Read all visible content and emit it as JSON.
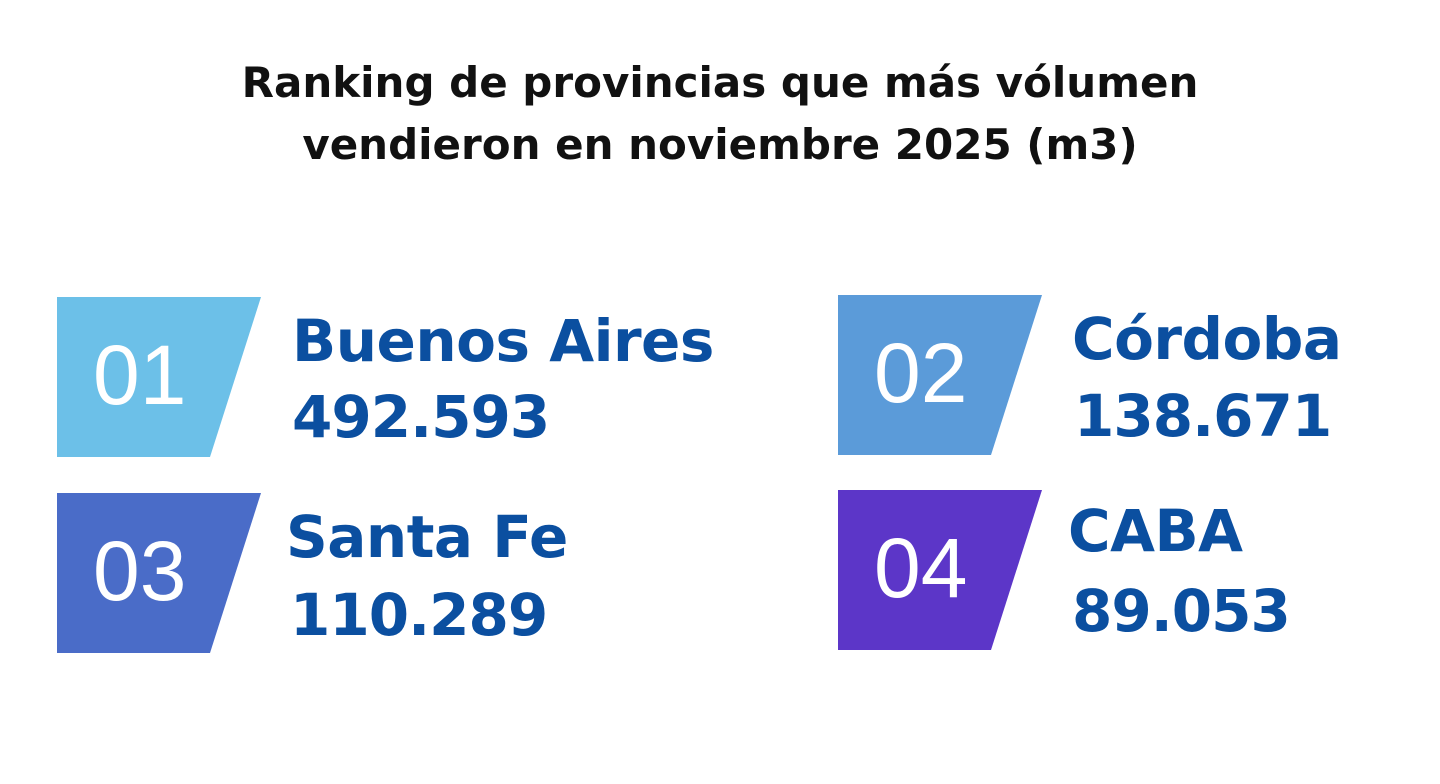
{
  "title": {
    "line1": "Ranking de provincias que más vólumen",
    "line2": "vendieron en noviembre 2025 (m3)"
  },
  "ranking": [
    {
      "rank": "01",
      "province": "Buenos Aires",
      "volume": "492.593",
      "color": "#6cc0e8"
    },
    {
      "rank": "02",
      "province": "Córdoba",
      "volume": "138.671",
      "color": "#5b9bd9"
    },
    {
      "rank": "03",
      "province": "Santa Fe",
      "volume": "110.289",
      "color": "#4a6cc8"
    },
    {
      "rank": "04",
      "province": "CABA",
      "volume": "89.053",
      "color": "#5c36c8"
    }
  ],
  "text_color": "#0b4fa0"
}
